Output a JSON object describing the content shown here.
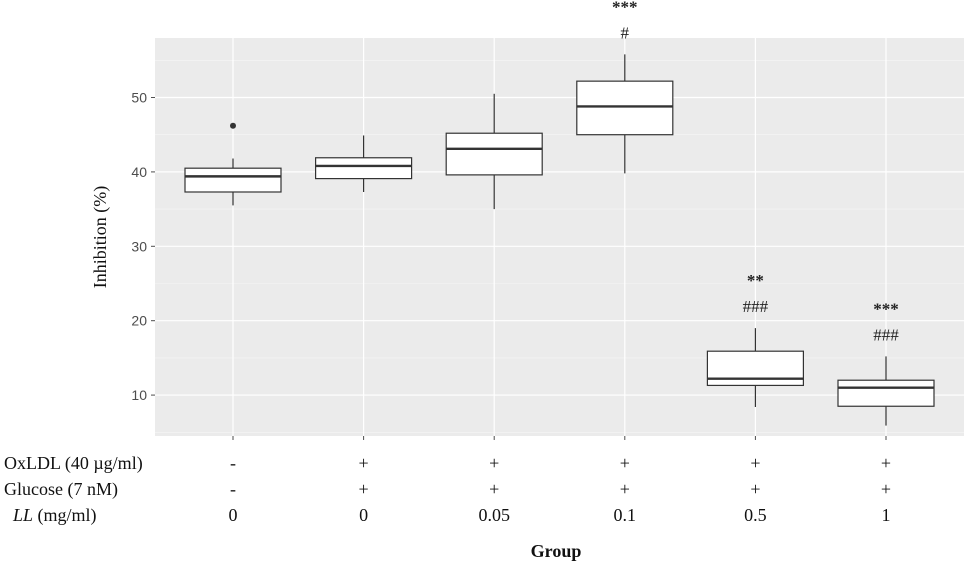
{
  "chart_data": {
    "type": "box",
    "ylabel": "Inhibition (%)",
    "xlabel": "Group",
    "ylim": [
      4.5,
      58
    ],
    "yticks": [
      10,
      20,
      30,
      40,
      50
    ],
    "grid": true,
    "rows": [
      {
        "label": "OxLDL (40 µg/ml)",
        "italic_part": "",
        "values": [
          "-",
          "+",
          "+",
          "+",
          "+",
          "+"
        ]
      },
      {
        "label": "Glucose (7 nM)",
        "italic_part": "",
        "values": [
          "-",
          "+",
          "+",
          "+",
          "+",
          "+"
        ]
      },
      {
        "label": " (mg/ml)",
        "italic_part": "LL",
        "values": [
          "0",
          "0",
          "0.05",
          "0.1",
          "0.5",
          "1"
        ]
      }
    ],
    "groups": [
      {
        "min": 35.5,
        "q1": 37.3,
        "median": 39.4,
        "q3": 40.5,
        "max": 41.8,
        "outliers": [
          46.2
        ],
        "sig": []
      },
      {
        "min": 37.3,
        "q1": 39.1,
        "median": 40.8,
        "q3": 41.9,
        "max": 44.9,
        "outliers": [],
        "sig": []
      },
      {
        "min": 35.0,
        "q1": 39.6,
        "median": 43.1,
        "q3": 45.2,
        "max": 50.5,
        "outliers": [],
        "sig": []
      },
      {
        "min": 39.8,
        "q1": 45.0,
        "median": 48.8,
        "q3": 52.2,
        "max": 55.8,
        "outliers": [],
        "sig": [
          "***",
          "#"
        ]
      },
      {
        "min": 8.4,
        "q1": 11.3,
        "median": 12.2,
        "q3": 15.9,
        "max": 19.0,
        "outliers": [],
        "sig": [
          "**",
          "###"
        ]
      },
      {
        "min": 5.9,
        "q1": 8.5,
        "median": 11.0,
        "q3": 12.0,
        "max": 15.2,
        "outliers": [],
        "sig": [
          "***",
          "###"
        ]
      }
    ]
  }
}
